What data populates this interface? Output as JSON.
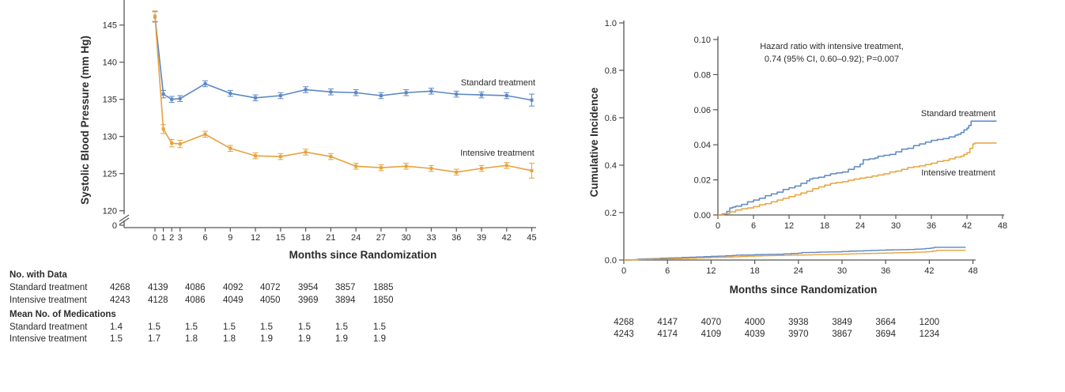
{
  "figure": {
    "description": "Two-panel clinical trial figure: systolic blood pressure over time and cumulative incidence of primary outcome",
    "colors": {
      "standard": "#5b87c5",
      "intensive": "#e8a23c",
      "axis": "#565658",
      "text": "#2d2a2b"
    }
  },
  "chart_data": [
    {
      "type": "line",
      "title": "",
      "xlabel": "Months since Randomization",
      "ylabel": "Systolic Blood Pressure (mm Hg)",
      "x": [
        0,
        1,
        2,
        3,
        6,
        9,
        12,
        15,
        18,
        21,
        24,
        27,
        30,
        33,
        36,
        39,
        42,
        45
      ],
      "yticks": [
        145,
        140,
        135,
        130,
        125,
        120
      ],
      "axis_break_zero_label": "0",
      "ylim": [
        120,
        148
      ],
      "grid": false,
      "legend_position": "inline-right",
      "series": [
        {
          "name": "Standard treatment",
          "color": "#5b87c5",
          "values": [
            146.1,
            135.7,
            135.0,
            135.1,
            137.1,
            135.8,
            135.2,
            135.5,
            136.3,
            136.0,
            135.9,
            135.5,
            135.9,
            136.1,
            135.7,
            135.6,
            135.5,
            134.9
          ],
          "errors": [
            0.7,
            0.5,
            0.4,
            0.4,
            0.4,
            0.4,
            0.4,
            0.4,
            0.4,
            0.4,
            0.4,
            0.4,
            0.4,
            0.4,
            0.4,
            0.4,
            0.4,
            0.8
          ]
        },
        {
          "name": "Intensive treatment",
          "color": "#e8a23c",
          "values": [
            146.2,
            131.0,
            129.1,
            129.0,
            130.3,
            128.4,
            127.4,
            127.3,
            127.9,
            127.3,
            126.0,
            125.8,
            126.0,
            125.7,
            125.2,
            125.7,
            126.1,
            125.4
          ],
          "errors": [
            0.7,
            0.6,
            0.5,
            0.5,
            0.4,
            0.4,
            0.4,
            0.4,
            0.4,
            0.4,
            0.4,
            0.4,
            0.4,
            0.4,
            0.4,
            0.4,
            0.4,
            1.0
          ]
        }
      ]
    },
    {
      "type": "line",
      "title": "",
      "xlabel": "Months since Randomization",
      "ylabel": "Cumulative Incidence",
      "annotation": [
        "Hazard ratio with intensive treatment,",
        "0.74 (95% CI, 0.60–0.92); P=0.007"
      ],
      "main_axis": {
        "ytick_labels": [
          "0.0",
          "0.2",
          "0.4",
          "0.6",
          "0.8",
          "1.0"
        ],
        "xticks": [
          0,
          6,
          12,
          18,
          24,
          30,
          36,
          42,
          48
        ],
        "ylim": [
          0,
          1.0
        ],
        "xlim": [
          0,
          48
        ]
      },
      "inset_axis": {
        "ytick_labels": [
          "0.00",
          "0.02",
          "0.04",
          "0.06",
          "0.08",
          "0.10"
        ],
        "xticks": [
          0,
          6,
          12,
          18,
          24,
          30,
          36,
          42,
          48
        ],
        "ylim": [
          0,
          0.1
        ],
        "xlim": [
          0,
          48
        ]
      },
      "grid": false,
      "legend_position": "inline-right",
      "series": [
        {
          "name": "Standard treatment",
          "color": "#5b87c5",
          "points": [
            [
              0,
              0
            ],
            [
              0.7,
              0.0005
            ],
            [
              1.5,
              0.002
            ],
            [
              2,
              0.004
            ],
            [
              2.5,
              0.0045
            ],
            [
              3,
              0.005
            ],
            [
              4,
              0.006
            ],
            [
              5,
              0.0075
            ],
            [
              6,
              0.0085
            ],
            [
              7,
              0.0095
            ],
            [
              8,
              0.011
            ],
            [
              9,
              0.012
            ],
            [
              10,
              0.013
            ],
            [
              11,
              0.0145
            ],
            [
              12,
              0.0155
            ],
            [
              13,
              0.0165
            ],
            [
              14,
              0.018
            ],
            [
              15,
              0.0195
            ],
            [
              15.5,
              0.0205
            ],
            [
              16,
              0.021
            ],
            [
              17,
              0.0215
            ],
            [
              18,
              0.0225
            ],
            [
              19,
              0.0235
            ],
            [
              20,
              0.024
            ],
            [
              21,
              0.0245
            ],
            [
              22,
              0.026
            ],
            [
              23,
              0.0275
            ],
            [
              24,
              0.029
            ],
            [
              24.5,
              0.0315
            ],
            [
              25.5,
              0.032
            ],
            [
              26.5,
              0.0325
            ],
            [
              27,
              0.0335
            ],
            [
              28,
              0.034
            ],
            [
              29,
              0.0345
            ],
            [
              30,
              0.036
            ],
            [
              31,
              0.0375
            ],
            [
              32,
              0.038
            ],
            [
              33,
              0.0395
            ],
            [
              34,
              0.0405
            ],
            [
              35,
              0.0415
            ],
            [
              36,
              0.0425
            ],
            [
              37,
              0.043
            ],
            [
              38,
              0.0435
            ],
            [
              39,
              0.0445
            ],
            [
              40,
              0.0455
            ],
            [
              40.5,
              0.046
            ],
            [
              41,
              0.047
            ],
            [
              41.5,
              0.0485
            ],
            [
              42,
              0.0495
            ],
            [
              42.3,
              0.051
            ],
            [
              42.7,
              0.0535
            ],
            [
              47,
              0.0535
            ]
          ]
        },
        {
          "name": "Intensive treatment",
          "color": "#e8a23c",
          "points": [
            [
              0,
              0
            ],
            [
              1,
              0.0008
            ],
            [
              2,
              0.0018
            ],
            [
              3,
              0.0028
            ],
            [
              4,
              0.0035
            ],
            [
              5,
              0.004
            ],
            [
              6,
              0.0048
            ],
            [
              7,
              0.0058
            ],
            [
              8,
              0.0065
            ],
            [
              9,
              0.0075
            ],
            [
              10,
              0.0085
            ],
            [
              11,
              0.0095
            ],
            [
              12,
              0.0105
            ],
            [
              13,
              0.0115
            ],
            [
              14,
              0.0125
            ],
            [
              15,
              0.0135
            ],
            [
              16,
              0.015
            ],
            [
              17,
              0.016
            ],
            [
              18,
              0.017
            ],
            [
              19,
              0.018
            ],
            [
              20,
              0.0185
            ],
            [
              21,
              0.019
            ],
            [
              22,
              0.0198
            ],
            [
              23,
              0.0205
            ],
            [
              24,
              0.021
            ],
            [
              25,
              0.0215
            ],
            [
              26,
              0.0222
            ],
            [
              27,
              0.0228
            ],
            [
              28,
              0.0235
            ],
            [
              29,
              0.0245
            ],
            [
              30,
              0.025
            ],
            [
              31,
              0.026
            ],
            [
              32,
              0.027
            ],
            [
              33,
              0.0275
            ],
            [
              34,
              0.028
            ],
            [
              35,
              0.0288
            ],
            [
              36,
              0.0295
            ],
            [
              37,
              0.0305
            ],
            [
              38,
              0.031
            ],
            [
              39,
              0.032
            ],
            [
              40,
              0.033
            ],
            [
              41,
              0.0335
            ],
            [
              41.5,
              0.0345
            ],
            [
              42,
              0.0355
            ],
            [
              42.5,
              0.038
            ],
            [
              43,
              0.0405
            ],
            [
              43.3,
              0.041
            ],
            [
              47,
              0.041
            ]
          ]
        }
      ]
    }
  ],
  "left_table": {
    "sections": [
      {
        "header": "No. with Data",
        "rows": [
          {
            "label": "Standard treatment",
            "values": [
              "4268",
              "4139",
              "4086",
              "4092",
              "4072",
              "3954",
              "3857",
              "1885"
            ]
          },
          {
            "label": "Intensive treatment",
            "values": [
              "4243",
              "4128",
              "4086",
              "4049",
              "4050",
              "3969",
              "3894",
              "1850"
            ]
          }
        ]
      },
      {
        "header": "Mean No. of Medications",
        "rows": [
          {
            "label": "Standard treatment",
            "values": [
              "1.4",
              "1.5",
              "1.5",
              "1.5",
              "1.5",
              "1.5",
              "1.5",
              "1.5"
            ]
          },
          {
            "label": "Intensive treatment",
            "values": [
              "1.5",
              "1.7",
              "1.8",
              "1.8",
              "1.9",
              "1.9",
              "1.9",
              "1.9"
            ]
          }
        ]
      }
    ]
  },
  "right_table": {
    "rows": [
      [
        "4268",
        "4147",
        "4070",
        "4000",
        "3938",
        "3849",
        "3664",
        "1200"
      ],
      [
        "4243",
        "4174",
        "4109",
        "4039",
        "3970",
        "3867",
        "3694",
        "1234"
      ]
    ]
  }
}
